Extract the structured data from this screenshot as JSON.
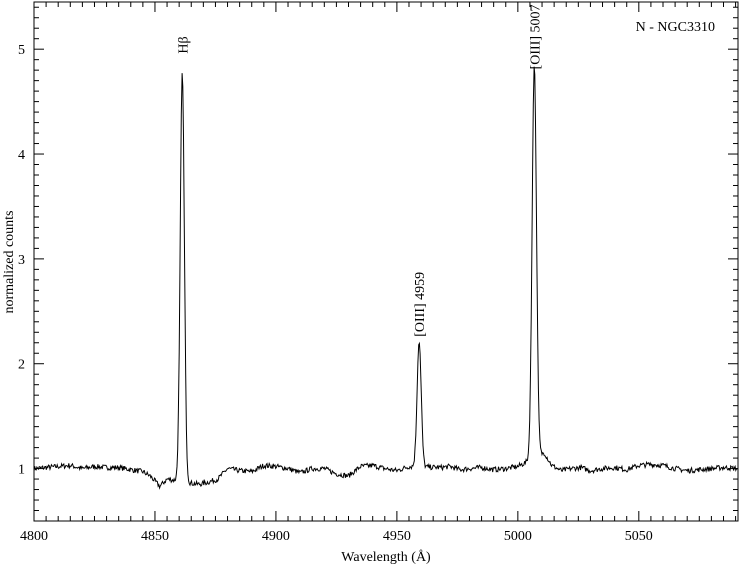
{
  "chart_data": {
    "type": "line",
    "annotation_box_label": "N - NGC3310",
    "xlabel": "Wavelength  (Å)",
    "ylabel": "normalized counts",
    "xlim": [
      4800,
      5091
    ],
    "ylim": [
      0.5,
      5.45
    ],
    "x_ticks": [
      4800,
      4850,
      4900,
      4950,
      5000,
      5050
    ],
    "y_ticks": [
      1,
      2,
      3,
      4,
      5
    ],
    "grid": false,
    "line_color": "#000000",
    "continuum_level": 1.0,
    "emission_lines": [
      {
        "label": "Hβ",
        "center": 4861.3,
        "peak": 4.9,
        "sigma": 0.85
      },
      {
        "label": "[OIII] 4959",
        "center": 4959.2,
        "peak": 2.2,
        "sigma": 0.85
      },
      {
        "label": "[OIII] 5007",
        "center": 5006.8,
        "peak": 4.75,
        "sigma": 0.9
      }
    ],
    "series": [
      {
        "x": [
          4800,
          4805,
          4810,
          4815,
          4820,
          4825,
          4830,
          4835,
          4840,
          4845,
          4848,
          4852,
          4855,
          4858,
          4860,
          4861.3,
          4863,
          4865,
          4868,
          4872,
          4876,
          4880,
          4885,
          4890,
          4895,
          4900,
          4905,
          4910,
          4915,
          4920,
          4925,
          4930,
          4935,
          4940,
          4945,
          4950,
          4955,
          4957,
          4959.2,
          4961,
          4963,
          4968,
          4972,
          4976,
          4980,
          4985,
          4990,
          4995,
          5000,
          5003,
          5005,
          5006.8,
          5008.5,
          5011,
          5014,
          5018,
          5022,
          5026,
          5030,
          5035,
          5040,
          5045,
          5050,
          5055,
          5060,
          5065,
          5070,
          5075,
          5080,
          5085,
          5091
        ],
        "y": [
          1.0,
          1.01,
          1.02,
          1.03,
          1.0,
          1.02,
          1.01,
          1.01,
          0.99,
          0.97,
          0.93,
          0.83,
          0.9,
          1.3,
          3.2,
          4.9,
          2.6,
          1.0,
          0.85,
          0.87,
          0.9,
          1.0,
          0.98,
          0.97,
          1.03,
          1.02,
          1.0,
          0.96,
          1.0,
          1.0,
          0.95,
          0.93,
          1.02,
          1.03,
          1.0,
          0.98,
          1.02,
          1.2,
          2.2,
          1.35,
          1.05,
          1.01,
          1.02,
          0.99,
          1.0,
          1.01,
          0.99,
          1.0,
          1.02,
          1.1,
          2.0,
          4.75,
          2.8,
          1.15,
          1.03,
          0.98,
          1.0,
          1.01,
          0.98,
          1.0,
          1.01,
          0.99,
          1.03,
          1.04,
          1.03,
          1.0,
          0.98,
          0.99,
          1.0,
          1.01,
          1.0
        ]
      }
    ]
  }
}
